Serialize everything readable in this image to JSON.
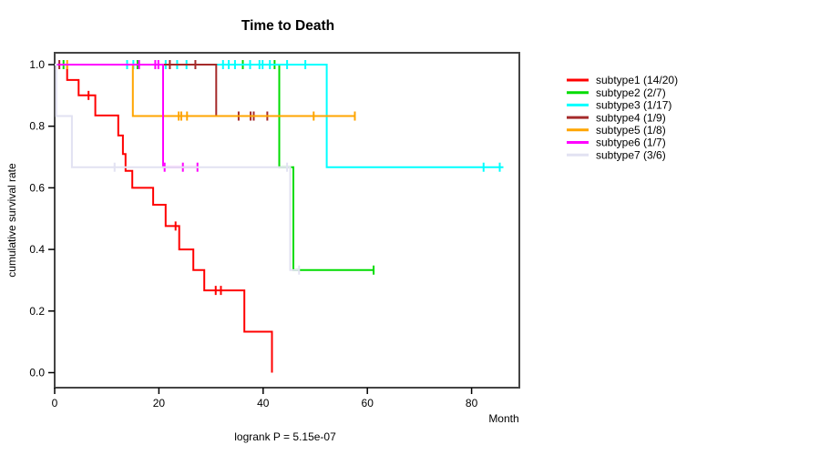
{
  "chart_data": {
    "type": "line",
    "chart_kind": "kaplan-meier-survival-steps",
    "title": "Time to Death",
    "xlabel": "Month",
    "ylabel": "cumulative survival rate",
    "annotation": "logrank P = 5.15e-07",
    "xlim": [
      0,
      89.2
    ],
    "ylim": [
      0,
      1
    ],
    "xticks": [
      0,
      20,
      40,
      60,
      80
    ],
    "yticks": [
      0.0,
      0.2,
      0.4,
      0.6,
      0.8,
      1.0
    ],
    "grid": false,
    "legend_position": "right-outside",
    "axis_color": "#444444",
    "series": [
      {
        "name": "subtype1",
        "label": "subtype1 (14/20)",
        "color": "#FF0000",
        "steps": [
          [
            0,
            1
          ],
          [
            2.4,
            0.95
          ],
          [
            4.6,
            0.9
          ],
          [
            7.8,
            0.835
          ],
          [
            12.2,
            0.77
          ],
          [
            13.1,
            0.71
          ],
          [
            13.6,
            0.655
          ],
          [
            14.9,
            0.6
          ],
          [
            18.9,
            0.545
          ],
          [
            21.3,
            0.476
          ],
          [
            23.9,
            0.4
          ],
          [
            26.6,
            0.333
          ],
          [
            28.7,
            0.267
          ],
          [
            36.4,
            0.133
          ],
          [
            41.7,
            0
          ]
        ],
        "end": 41.7,
        "censors": [
          [
            6.5,
            0.9
          ],
          [
            23.2,
            0.476
          ],
          [
            30.9,
            0.267
          ],
          [
            31.9,
            0.267
          ]
        ]
      },
      {
        "name": "subtype2",
        "label": "subtype2 (2/7)",
        "color": "#00DC00",
        "steps": [
          [
            0,
            1
          ],
          [
            43.1,
            0.667
          ],
          [
            45.8,
            0.333
          ]
        ],
        "end": 61.2,
        "censors": [
          [
            1.7,
            1
          ],
          [
            15.9,
            1
          ],
          [
            36.1,
            1
          ],
          [
            42.2,
            1
          ],
          [
            61.2,
            0.333
          ]
        ]
      },
      {
        "name": "subtype3",
        "label": "subtype3 (1/17)",
        "color": "#00FFFF",
        "steps": [
          [
            0,
            1
          ],
          [
            52.2,
            0.667
          ]
        ],
        "end": 86.1,
        "censors": [
          [
            13.9,
            1
          ],
          [
            15.1,
            1
          ],
          [
            21.3,
            1
          ],
          [
            23.5,
            1
          ],
          [
            25.3,
            1
          ],
          [
            32.3,
            1
          ],
          [
            33.4,
            1
          ],
          [
            34.6,
            1
          ],
          [
            37.5,
            1
          ],
          [
            39.3,
            1
          ],
          [
            39.9,
            1
          ],
          [
            41.3,
            1
          ],
          [
            44.6,
            1
          ],
          [
            48.1,
            1
          ],
          [
            82.3,
            0.667
          ],
          [
            85.4,
            0.667
          ]
        ]
      },
      {
        "name": "subtype4",
        "label": "subtype4 (1/9)",
        "color": "#A52A2A",
        "steps": [
          [
            0,
            1
          ],
          [
            31,
            0.833
          ]
        ],
        "end": 40.8,
        "censors": [
          [
            0.9,
            1
          ],
          [
            22.1,
            1
          ],
          [
            27,
            1
          ],
          [
            35.3,
            0.833
          ],
          [
            37.6,
            0.833
          ],
          [
            38.2,
            0.833
          ],
          [
            40.8,
            0.833
          ]
        ]
      },
      {
        "name": "subtype5",
        "label": "subtype5 (1/8)",
        "color": "#FFA500",
        "steps": [
          [
            0,
            1
          ],
          [
            15,
            0.833
          ]
        ],
        "end": 57.6,
        "censors": [
          [
            2.4,
            1
          ],
          [
            23.8,
            0.833
          ],
          [
            24.3,
            0.833
          ],
          [
            25.4,
            0.833
          ],
          [
            49.7,
            0.833
          ],
          [
            57.6,
            0.833
          ]
        ]
      },
      {
        "name": "subtype6",
        "label": "subtype6 (1/7)",
        "color": "#FF00FF",
        "steps": [
          [
            0,
            1
          ],
          [
            20.8,
            0.667
          ]
        ],
        "end": 27.4,
        "censors": [
          [
            16.2,
            1
          ],
          [
            19.3,
            1
          ],
          [
            19.9,
            1
          ],
          [
            21.1,
            0.667
          ],
          [
            24.6,
            0.667
          ],
          [
            27.4,
            0.667
          ]
        ]
      },
      {
        "name": "subtype7",
        "label": "subtype7 (3/6)",
        "color": "#E2E2F2",
        "steps": [
          [
            0,
            1
          ],
          [
            0.3,
            0.833
          ],
          [
            3.3,
            0.667
          ],
          [
            45.2,
            0.333
          ]
        ],
        "end": 46.9,
        "censors": [
          [
            11.5,
            0.667
          ],
          [
            44.6,
            0.667
          ],
          [
            46.9,
            0.333
          ]
        ]
      }
    ]
  }
}
